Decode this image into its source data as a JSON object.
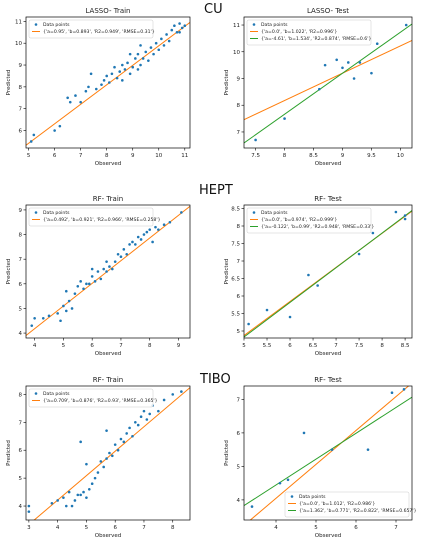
{
  "section_labels": [
    "CU",
    "HEPT",
    "TIBO"
  ],
  "colors": {
    "points": "#1f77b4",
    "fit_orange": "#ff7f0e",
    "fit_green": "#2ca02c",
    "frame": "#000000"
  },
  "chart_data": [
    {
      "type": "scatter",
      "title": "LASSO- Train",
      "xlabel": "Observed",
      "ylabel": "Predicted",
      "xlim": [
        4.9,
        11.2
      ],
      "ylim": [
        5.2,
        11.2
      ],
      "xticks": [
        5,
        6,
        7,
        8,
        9,
        10,
        11
      ],
      "yticks": [
        6,
        7,
        8,
        9,
        10,
        11
      ],
      "legend_placement": "top-left",
      "series": [
        {
          "name": "Data points",
          "kind": "points",
          "points": [
            [
              5.1,
              5.5
            ],
            [
              5.2,
              5.8
            ],
            [
              6.0,
              6.0
            ],
            [
              6.2,
              6.2
            ],
            [
              6.5,
              7.5
            ],
            [
              6.6,
              7.3
            ],
            [
              6.8,
              7.6
            ],
            [
              7.0,
              7.3
            ],
            [
              7.2,
              7.8
            ],
            [
              7.3,
              8.0
            ],
            [
              7.4,
              8.6
            ],
            [
              7.6,
              7.9
            ],
            [
              7.8,
              8.1
            ],
            [
              7.9,
              8.3
            ],
            [
              8.0,
              8.5
            ],
            [
              8.1,
              8.2
            ],
            [
              8.2,
              8.6
            ],
            [
              8.3,
              8.9
            ],
            [
              8.4,
              8.4
            ],
            [
              8.5,
              8.7
            ],
            [
              8.6,
              9.0
            ],
            [
              8.6,
              8.3
            ],
            [
              8.7,
              8.8
            ],
            [
              8.8,
              9.1
            ],
            [
              8.9,
              8.6
            ],
            [
              9.0,
              8.9
            ],
            [
              9.1,
              9.3
            ],
            [
              9.2,
              9.5
            ],
            [
              9.2,
              8.8
            ],
            [
              9.3,
              9.0
            ],
            [
              9.4,
              9.3
            ],
            [
              9.5,
              9.6
            ],
            [
              9.6,
              9.2
            ],
            [
              9.7,
              9.8
            ],
            [
              9.8,
              9.5
            ],
            [
              9.9,
              10.0
            ],
            [
              10.0,
              9.7
            ],
            [
              10.1,
              10.2
            ],
            [
              10.2,
              9.9
            ],
            [
              10.3,
              10.4
            ],
            [
              10.4,
              10.1
            ],
            [
              10.5,
              10.6
            ],
            [
              10.6,
              10.8
            ],
            [
              10.7,
              10.5
            ],
            [
              10.8,
              10.9
            ],
            [
              10.9,
              10.7
            ],
            [
              11.0,
              10.8
            ],
            [
              10.8,
              10.5
            ],
            [
              8.9,
              9.5
            ],
            [
              9.3,
              9.9
            ]
          ]
        },
        {
          "name": "{'a=0.95', 'b=0.893', 'R2=0.949', 'RMSE=0.31'}",
          "kind": "line",
          "color": "#ff7f0e",
          "a": 0.95,
          "b": 0.893
        }
      ]
    },
    {
      "type": "scatter",
      "title": "LASSO- Test",
      "xlabel": "Observed",
      "ylabel": "Predicted",
      "xlim": [
        7.3,
        10.2
      ],
      "ylim": [
        6.4,
        11.3
      ],
      "xticks": [
        7.5,
        8.0,
        8.5,
        9.0,
        9.5,
        10.0
      ],
      "yticks": [
        7,
        8,
        9,
        10,
        11
      ],
      "legend_placement": "top-left",
      "series": [
        {
          "name": "Data points",
          "kind": "points",
          "points": [
            [
              7.5,
              6.7
            ],
            [
              8.0,
              7.5
            ],
            [
              8.6,
              8.6
            ],
            [
              8.7,
              9.5
            ],
            [
              8.9,
              9.7
            ],
            [
              9.0,
              9.4
            ],
            [
              9.1,
              9.6
            ],
            [
              9.2,
              9.0
            ],
            [
              9.3,
              9.6
            ],
            [
              9.5,
              9.2
            ],
            [
              9.6,
              10.3
            ],
            [
              10.1,
              11.0
            ]
          ]
        },
        {
          "name": "{'a=0.0', 'b=1.022', 'R2=0.996'}",
          "kind": "line",
          "color": "#ff7f0e",
          "a": 0.0,
          "b": 1.022
        },
        {
          "name": "{'a=-4.61', 'b=1.534', 'R2=0.874', 'RMSE=0.6'}",
          "kind": "line",
          "color": "#2ca02c",
          "a": -4.61,
          "b": 1.534
        }
      ]
    },
    {
      "type": "scatter",
      "title": "RF- Train",
      "xlabel": "Observed",
      "ylabel": "Predicted",
      "xlim": [
        3.7,
        9.4
      ],
      "ylim": [
        3.8,
        9.2
      ],
      "xticks": [
        4,
        5,
        6,
        7,
        8,
        9
      ],
      "yticks": [
        4,
        5,
        6,
        7,
        8,
        9
      ],
      "legend_placement": "top-left",
      "series": [
        {
          "name": "Data points",
          "kind": "points",
          "points": [
            [
              3.9,
              4.3
            ],
            [
              4.0,
              4.6
            ],
            [
              4.3,
              4.6
            ],
            [
              4.5,
              4.7
            ],
            [
              4.8,
              4.8
            ],
            [
              4.9,
              4.5
            ],
            [
              5.0,
              5.1
            ],
            [
              5.1,
              4.9
            ],
            [
              5.2,
              5.3
            ],
            [
              5.3,
              5.0
            ],
            [
              5.4,
              5.6
            ],
            [
              5.5,
              5.9
            ],
            [
              5.6,
              6.1
            ],
            [
              5.7,
              5.8
            ],
            [
              5.8,
              6.0
            ],
            [
              5.9,
              6.0
            ],
            [
              6.0,
              6.3
            ],
            [
              6.1,
              6.1
            ],
            [
              6.2,
              6.5
            ],
            [
              6.3,
              6.2
            ],
            [
              6.4,
              6.6
            ],
            [
              6.5,
              6.5
            ],
            [
              6.6,
              6.7
            ],
            [
              6.7,
              6.6
            ],
            [
              6.8,
              6.9
            ],
            [
              6.9,
              7.2
            ],
            [
              7.0,
              7.1
            ],
            [
              7.1,
              7.4
            ],
            [
              7.2,
              7.2
            ],
            [
              7.3,
              7.6
            ],
            [
              7.4,
              7.7
            ],
            [
              7.5,
              7.6
            ],
            [
              7.6,
              7.9
            ],
            [
              7.7,
              7.8
            ],
            [
              7.8,
              8.0
            ],
            [
              7.9,
              8.1
            ],
            [
              8.0,
              8.2
            ],
            [
              8.1,
              7.7
            ],
            [
              8.2,
              8.3
            ],
            [
              8.3,
              8.2
            ],
            [
              8.5,
              8.4
            ],
            [
              8.7,
              8.5
            ],
            [
              9.1,
              8.9
            ],
            [
              5.1,
              5.7
            ],
            [
              6.0,
              6.6
            ],
            [
              6.5,
              6.9
            ]
          ]
        },
        {
          "name": "{'a=0.492', 'b=0.921', 'R2=0.966', 'RMSE=0.258'}",
          "kind": "line",
          "color": "#ff7f0e",
          "a": 0.492,
          "b": 0.921
        }
      ]
    },
    {
      "type": "scatter",
      "title": "RF- Test",
      "xlabel": "Observed",
      "ylabel": "Predicted",
      "xlim": [
        5.0,
        8.65
      ],
      "ylim": [
        4.8,
        8.6
      ],
      "xticks": [
        5.0,
        5.5,
        6.0,
        6.5,
        7.0,
        7.5,
        8.0,
        8.5
      ],
      "yticks": [
        5.0,
        5.5,
        6.0,
        6.5,
        7.0,
        7.5,
        8.0,
        8.5
      ],
      "legend_placement": "top-left",
      "series": [
        {
          "name": "Data points",
          "kind": "points",
          "points": [
            [
              5.1,
              5.2
            ],
            [
              5.5,
              5.6
            ],
            [
              6.0,
              5.4
            ],
            [
              6.4,
              6.6
            ],
            [
              6.6,
              6.3
            ],
            [
              7.5,
              7.2
            ],
            [
              7.8,
              7.8
            ],
            [
              8.3,
              8.4
            ],
            [
              8.5,
              8.3
            ],
            [
              8.5,
              8.2
            ]
          ]
        },
        {
          "name": "{'a=0.0', 'b=0.974', 'R2=0.999'}",
          "kind": "line",
          "color": "#ff7f0e",
          "a": 0.0,
          "b": 0.974
        },
        {
          "name": "{'a=-0.122', 'b=0.99', 'R2=0.948', 'RMSE=0.33'}",
          "kind": "line",
          "color": "#2ca02c",
          "a": -0.122,
          "b": 0.99
        }
      ]
    },
    {
      "type": "scatter",
      "title": "RF- Train",
      "xlabel": "Observed",
      "ylabel": "Predicted",
      "xlim": [
        2.9,
        8.6
      ],
      "ylim": [
        3.5,
        8.3
      ],
      "xticks": [
        3,
        4,
        5,
        6,
        7,
        8
      ],
      "yticks": [
        4,
        5,
        6,
        7,
        8
      ],
      "legend_placement": "top-left",
      "series": [
        {
          "name": "Data points",
          "kind": "points",
          "points": [
            [
              3.0,
              3.8
            ],
            [
              3.0,
              4.0
            ],
            [
              3.8,
              4.1
            ],
            [
              4.0,
              4.2
            ],
            [
              4.2,
              4.3
            ],
            [
              4.3,
              4.0
            ],
            [
              4.4,
              4.5
            ],
            [
              4.5,
              4.0
            ],
            [
              4.6,
              4.2
            ],
            [
              4.7,
              4.4
            ],
            [
              4.8,
              4.4
            ],
            [
              4.9,
              4.5
            ],
            [
              5.0,
              4.3
            ],
            [
              5.1,
              4.6
            ],
            [
              5.2,
              4.8
            ],
            [
              5.3,
              5.0
            ],
            [
              5.4,
              5.2
            ],
            [
              5.5,
              5.6
            ],
            [
              5.6,
              5.4
            ],
            [
              5.7,
              5.7
            ],
            [
              5.8,
              5.9
            ],
            [
              5.9,
              5.8
            ],
            [
              6.0,
              6.2
            ],
            [
              6.1,
              6.0
            ],
            [
              6.2,
              6.4
            ],
            [
              6.3,
              6.3
            ],
            [
              6.4,
              6.6
            ],
            [
              6.5,
              6.8
            ],
            [
              6.6,
              6.5
            ],
            [
              6.7,
              7.0
            ],
            [
              6.8,
              6.9
            ],
            [
              6.9,
              7.2
            ],
            [
              7.0,
              7.4
            ],
            [
              7.1,
              7.1
            ],
            [
              7.2,
              7.3
            ],
            [
              7.3,
              7.6
            ],
            [
              7.5,
              7.4
            ],
            [
              7.7,
              7.8
            ],
            [
              8.0,
              8.0
            ],
            [
              8.3,
              8.1
            ],
            [
              5.0,
              5.5
            ],
            [
              4.8,
              6.3
            ],
            [
              5.7,
              6.7
            ]
          ]
        },
        {
          "name": "{'a=0.709', 'b=0.876', 'R2=0.93', 'RMSE=0.365'}",
          "kind": "line",
          "color": "#ff7f0e",
          "a": 0.709,
          "b": 0.876
        }
      ]
    },
    {
      "type": "scatter",
      "title": "RF- Test",
      "xlabel": "Observed",
      "ylabel": "Predicted",
      "xlim": [
        3.2,
        7.4
      ],
      "ylim": [
        3.4,
        7.4
      ],
      "xticks": [
        4,
        5,
        6,
        7
      ],
      "yticks": [
        4,
        5,
        6,
        7
      ],
      "legend_placement": "bottom-right",
      "series": [
        {
          "name": "Data points",
          "kind": "points",
          "points": [
            [
              3.4,
              3.8
            ],
            [
              4.1,
              4.5
            ],
            [
              4.3,
              4.6
            ],
            [
              4.7,
              6.0
            ],
            [
              5.4,
              5.5
            ],
            [
              6.3,
              5.5
            ],
            [
              6.9,
              7.2
            ],
            [
              7.2,
              7.3
            ]
          ]
        },
        {
          "name": "{'a=0.0', 'b=1.012', 'R2=0.986'}",
          "kind": "line",
          "color": "#ff7f0e",
          "a": 0.0,
          "b": 1.012
        },
        {
          "name": "{'a=1.362', 'b=0.771', 'R2=0.822', 'RMSE=0.657'}",
          "kind": "line",
          "color": "#2ca02c",
          "a": 1.362,
          "b": 0.771
        }
      ]
    }
  ]
}
